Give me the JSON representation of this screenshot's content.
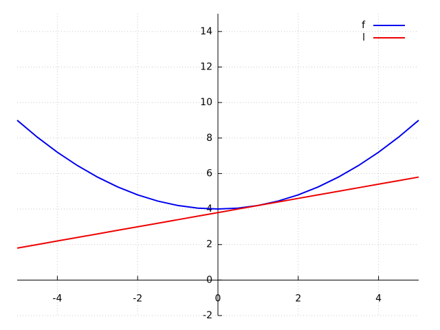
{
  "chart_data": {
    "type": "line",
    "x": [
      -5,
      -4.5,
      -4,
      -3.5,
      -3,
      -2.5,
      -2,
      -1.5,
      -1,
      -0.5,
      0,
      0.5,
      1,
      1.5,
      2,
      2.5,
      3,
      3.5,
      4,
      4.5,
      5
    ],
    "series": [
      {
        "name": "f",
        "color": "#0000ee",
        "values": [
          9,
          8.05,
          7.2,
          6.45,
          5.8,
          5.25,
          4.8,
          4.45,
          4.2,
          4.05,
          4,
          4.05,
          4.2,
          4.45,
          4.8,
          5.25,
          5.8,
          6.45,
          7.2,
          8.05,
          9
        ]
      },
      {
        "name": "l",
        "color": "#ee0000",
        "values": [
          1.8,
          2.0,
          2.2,
          2.4,
          2.6,
          2.8,
          3.0,
          3.2,
          3.4,
          3.6,
          3.8,
          4.0,
          4.2,
          4.4,
          4.6,
          4.8,
          5.0,
          5.2,
          5.4,
          5.6,
          5.8
        ]
      }
    ],
    "xlim": [
      -5,
      5
    ],
    "ylim": [
      -2,
      15
    ],
    "xticks": [
      -4,
      -2,
      0,
      2,
      4
    ],
    "yticks": [
      -2,
      0,
      2,
      4,
      6,
      8,
      10,
      12,
      14
    ],
    "grid": true,
    "legend": "upper right"
  }
}
